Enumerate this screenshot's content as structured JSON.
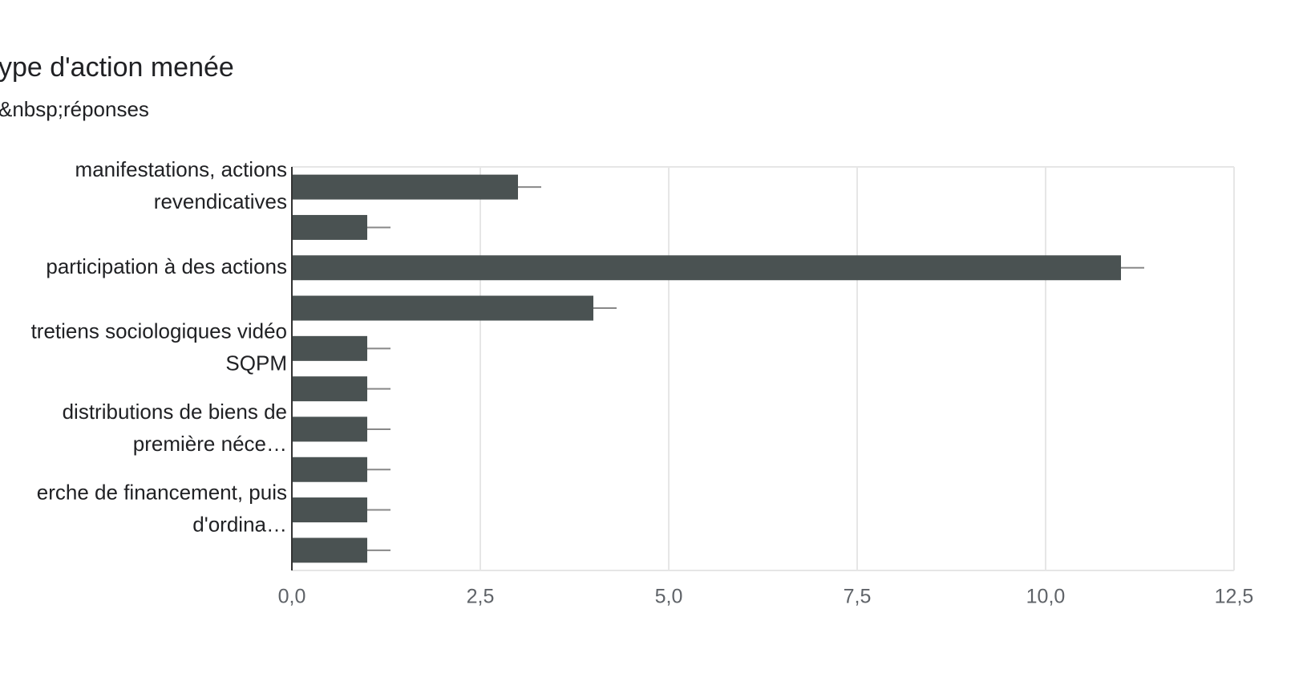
{
  "chart_data": {
    "type": "bar",
    "orientation": "horizontal",
    "title": "ype d'action menée",
    "subtitle": "&nbsp;réponses",
    "categories": [
      [
        "manifestations, actions",
        "revendicatives"
      ],
      null,
      [
        "participation à des actions"
      ],
      null,
      [
        "tretiens sociologiques vidéo",
        "SQPM"
      ],
      null,
      [
        "distributions de biens de",
        "première néce…"
      ],
      null,
      [
        "erche de financement, puis",
        "d'ordina…"
      ],
      null
    ],
    "values": [
      3,
      1,
      11,
      4,
      1,
      1,
      1,
      1,
      1,
      1
    ],
    "color": "#4a5252",
    "xlim": [
      0,
      12.5
    ],
    "xticks": [
      {
        "value": 0,
        "label": "0,0"
      },
      {
        "value": 2.5,
        "label": "2,5"
      },
      {
        "value": 5,
        "label": "5,0"
      },
      {
        "value": 7.5,
        "label": "7,5"
      },
      {
        "value": 10,
        "label": "10,0"
      },
      {
        "value": 12.5,
        "label": "12,5"
      }
    ],
    "grid": true
  }
}
